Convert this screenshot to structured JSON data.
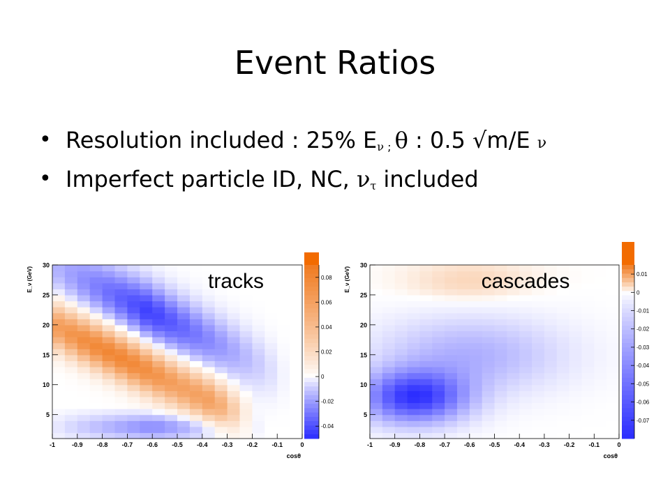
{
  "slide": {
    "title": "Event Ratios",
    "bullets": [
      {
        "prefix": "Resolution included : 25% E",
        "nu": "ν",
        "sep": " ; ",
        "theta": "θ",
        "mid": " : 0.5 ",
        "sqrt": "√",
        "tail": "m/E ",
        "nu2": "ν"
      },
      {
        "prefix": "Imperfect particle ID, NC, ",
        "nu": "ν",
        "tau": "τ",
        "tail": " included"
      }
    ]
  },
  "colors": {
    "positive": "#f07a1f",
    "neutral": "#ffffff",
    "negative": "#2a2cff",
    "overflow": "#f26b00"
  },
  "chart_data": [
    {
      "type": "heatmap",
      "label": "tracks",
      "xlabel": "cosθ",
      "ylabel": "E_ν (GeV)",
      "xlim": [
        -1,
        0
      ],
      "ylim": [
        1,
        30
      ],
      "x_ticks": [
        "-1",
        "-0.9",
        "-0.8",
        "-0.7",
        "-0.6",
        "-0.5",
        "-0.4",
        "-0.3",
        "-0.2",
        "-0.1",
        "0"
      ],
      "y_ticks": [
        "5",
        "10",
        "15",
        "20",
        "25",
        "30"
      ],
      "zlim": [
        -0.05,
        0.09
      ],
      "colorbar_ticks": [
        "0.08",
        "0.06",
        "0.04",
        "0.02",
        "0",
        "-0.02",
        "-0.04"
      ],
      "colorbar_values": [
        0.08,
        0.06,
        0.04,
        0.02,
        0,
        -0.02,
        -0.04
      ],
      "features": [
        {
          "description": "positive band",
          "peak": 0.08,
          "from_cos": -1.0,
          "to_cos": -0.35,
          "E_at_start": 20,
          "E_at_end": 7
        },
        {
          "description": "negative band above",
          "peak": -0.045,
          "from_cos": -0.95,
          "to_cos": -0.2,
          "E_at_start": 29,
          "E_at_end": 14
        }
      ]
    },
    {
      "type": "heatmap",
      "label": "cascades",
      "xlabel": "cosθ",
      "ylabel": "E_ν (GeV)",
      "xlim": [
        -1,
        0
      ],
      "ylim": [
        1,
        30
      ],
      "x_ticks": [
        "-1",
        "-0.9",
        "-0.8",
        "-0.7",
        "-0.6",
        "-0.5",
        "-0.4",
        "-0.3",
        "-0.2",
        "-0.1",
        "0"
      ],
      "y_ticks": [
        "5",
        "10",
        "15",
        "20",
        "25",
        "30"
      ],
      "zlim": [
        -0.08,
        0.015
      ],
      "colorbar_ticks": [
        "0.01",
        "0",
        "-0.01",
        "-0.02",
        "-0.03",
        "-0.04",
        "-0.05",
        "-0.06",
        "-0.07"
      ],
      "colorbar_values": [
        0.01,
        0,
        -0.01,
        -0.02,
        -0.03,
        -0.04,
        -0.05,
        -0.06,
        -0.07
      ],
      "features": [
        {
          "description": "negative region",
          "peak": -0.075,
          "center_cos": -0.82,
          "center_E": 8
        },
        {
          "description": "slight positive region",
          "peak": 0.004,
          "center_cos": -0.6,
          "center_E": 27
        }
      ]
    }
  ]
}
